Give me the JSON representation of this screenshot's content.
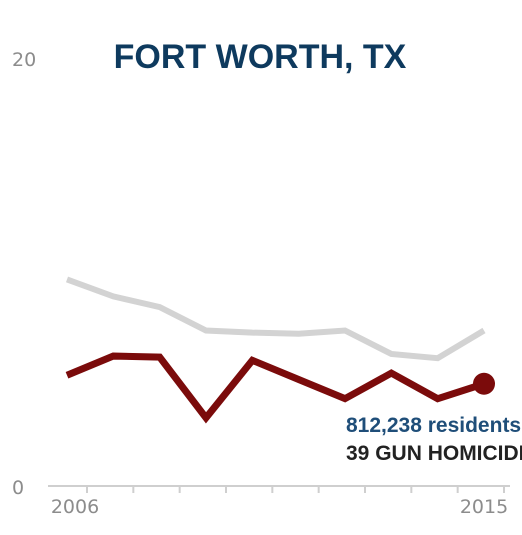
{
  "chart_data": {
    "type": "line",
    "title": "FORT WORTH, TX",
    "x": [
      2006,
      2007,
      2008,
      2009,
      2010,
      2011,
      2012,
      2013,
      2014,
      2015
    ],
    "ylim": [
      0,
      20
    ],
    "y_ticks": [
      "20",
      "0"
    ],
    "x_tick_labels": [
      "2006",
      "2015"
    ],
    "series": [
      {
        "values": [
          9.7,
          8.9,
          8.4,
          7.3,
          7.2,
          7.15,
          7.3,
          6.2,
          6.0,
          7.3
        ],
        "color": "#d3d3d3"
      },
      {
        "values": [
          5.2,
          6.1,
          6.05,
          3.2,
          5.9,
          5.0,
          4.1,
          5.3,
          4.1,
          4.8
        ],
        "color": "#7b0b0b"
      }
    ],
    "annotations": {
      "residents": "812,238 residents",
      "homicides": "39 GUN HOMICIDES"
    },
    "grid": false
  }
}
